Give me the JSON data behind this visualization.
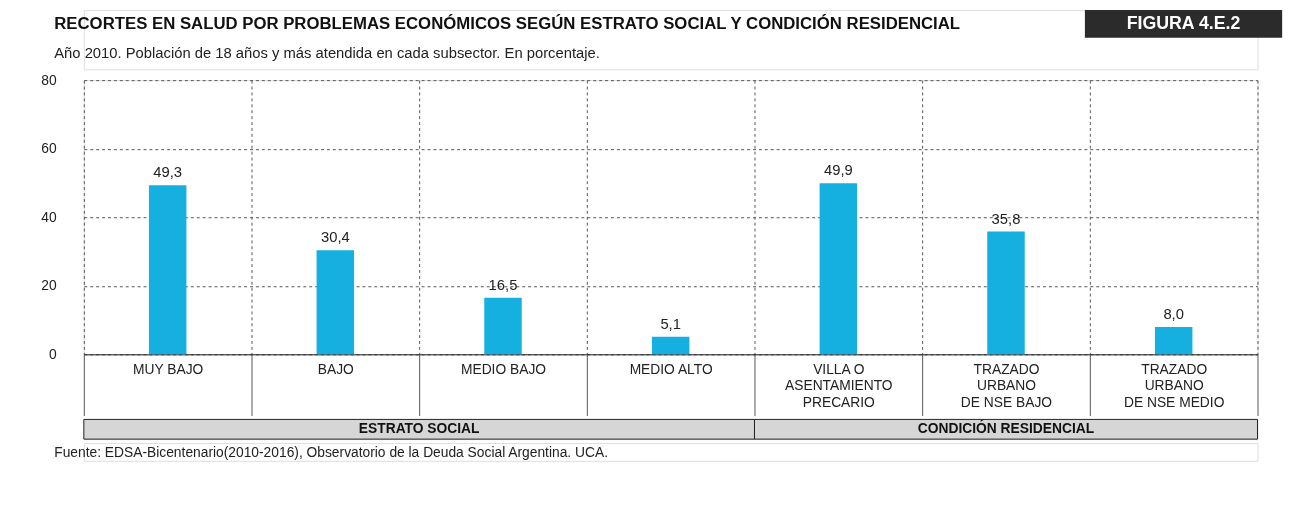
{
  "chart_data": {
    "type": "bar",
    "title": "RECORTES EN SALUD POR PROBLEMAS ECONÓMICOS SEGÚN ESTRATO SOCIAL Y CONDICIÓN RESIDENCIAL",
    "subtitle": "Año 2010. Población de 18 años y más atendida en cada subsector. En porcentaje.",
    "categories": [
      "MUY BAJO",
      "BAJO",
      "MEDIO BAJO",
      "MEDIO ALTO",
      "VILLA O\nASENTAMIENTO\nPRECARIO",
      "TRAZADO\nURBANO\nDE NSE BAJO",
      "TRAZADO\nURBANO\nDE NSE MEDIO"
    ],
    "values": [
      49.3,
      30.4,
      16.5,
      5.1,
      49.9,
      35.8,
      8.0
    ],
    "color": "#15b0e0",
    "value_labels": [
      "49,3",
      "30,4",
      "16,5",
      "5,1",
      "49,9",
      "35,8",
      "8,0"
    ],
    "ylim": [
      0,
      80
    ],
    "yticks": [
      0,
      20,
      40,
      60,
      80
    ],
    "grid": true,
    "annotations": [
      "FIGURA 4.E.2",
      "ESTRATO SOCIAL",
      "CONDICIÓN RESIDENCIAL",
      "Fuente: EDSA-Bicentenario(2010-2016), Observatorio de la Deuda Social Argentina. UCA."
    ]
  }
}
